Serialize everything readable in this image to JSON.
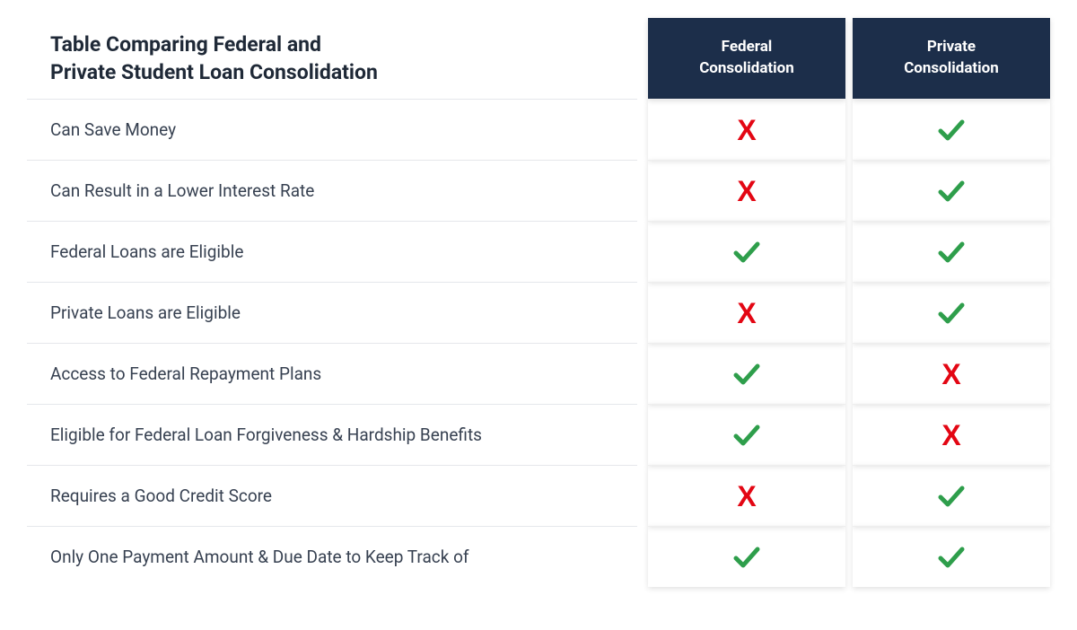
{
  "table": {
    "title_line1": "Table Comparing Federal and",
    "title_line2": "Private Student Loan Consolidation",
    "columns": [
      {
        "label_line1": "Federal",
        "label_line2": "Consolidation"
      },
      {
        "label_line1": "Private",
        "label_line2": "Consolidation"
      }
    ],
    "rows": [
      {
        "label": "Can Save Money",
        "federal": "x",
        "private": "check"
      },
      {
        "label": "Can Result in a Lower Interest Rate",
        "federal": "x",
        "private": "check"
      },
      {
        "label": "Federal Loans are Eligible",
        "federal": "check",
        "private": "check"
      },
      {
        "label": "Private Loans are Eligible",
        "federal": "x",
        "private": "check"
      },
      {
        "label": "Access to Federal Repayment Plans",
        "federal": "check",
        "private": "x"
      },
      {
        "label": "Eligible for Federal Loan Forgiveness & Hardship Benefits",
        "federal": "check",
        "private": "x"
      },
      {
        "label": "Requires a Good Credit Score",
        "federal": "x",
        "private": "check"
      },
      {
        "label": "Only One Payment Amount & Due Date to Keep Track of",
        "federal": "check",
        "private": "check"
      }
    ],
    "colors": {
      "header_bg": "#1c2e4a",
      "header_text": "#ffffff",
      "check_color": "#2e9e4b",
      "x_color": "#e30613",
      "row_border": "#e5e7eb",
      "label_text": "#374151",
      "title_text": "#1f2937",
      "background": "#ffffff"
    }
  }
}
